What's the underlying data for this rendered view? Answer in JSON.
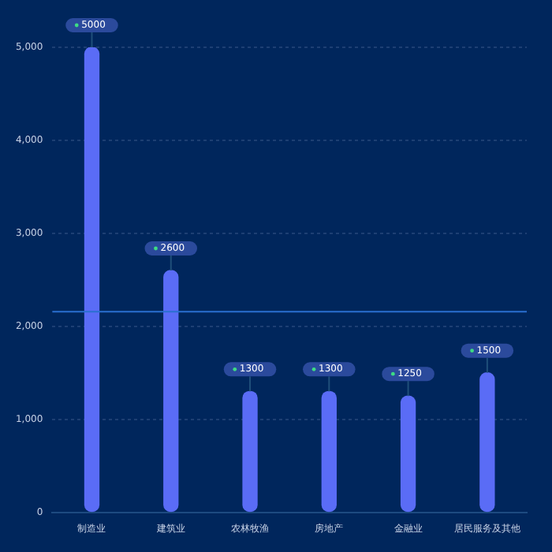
{
  "chart_data": {
    "type": "bar",
    "categories": [
      "制造业",
      "建筑业",
      "农林牧渔",
      "房地产",
      "金融业",
      "居民服务及其他"
    ],
    "values": [
      5000,
      2600,
      1300,
      1300,
      1250,
      1500
    ],
    "color": "#5a6cf6",
    "ylim": [
      0,
      5000
    ],
    "yticks": [
      0,
      {
        "value": 1000,
        "label": "1,000"
      },
      {
        "value": 2000,
        "label": "2,000"
      },
      {
        "value": 3000,
        "label": "3,000"
      },
      {
        "value": 4000,
        "label": "4,000"
      },
      {
        "value": 5000,
        "label": "5,000"
      }
    ],
    "grid": "y",
    "data_labels": true,
    "legend": false,
    "ref_lines": [
      {
        "axis": "y",
        "value": 2158,
        "color": "#2a6fd0"
      }
    ]
  }
}
